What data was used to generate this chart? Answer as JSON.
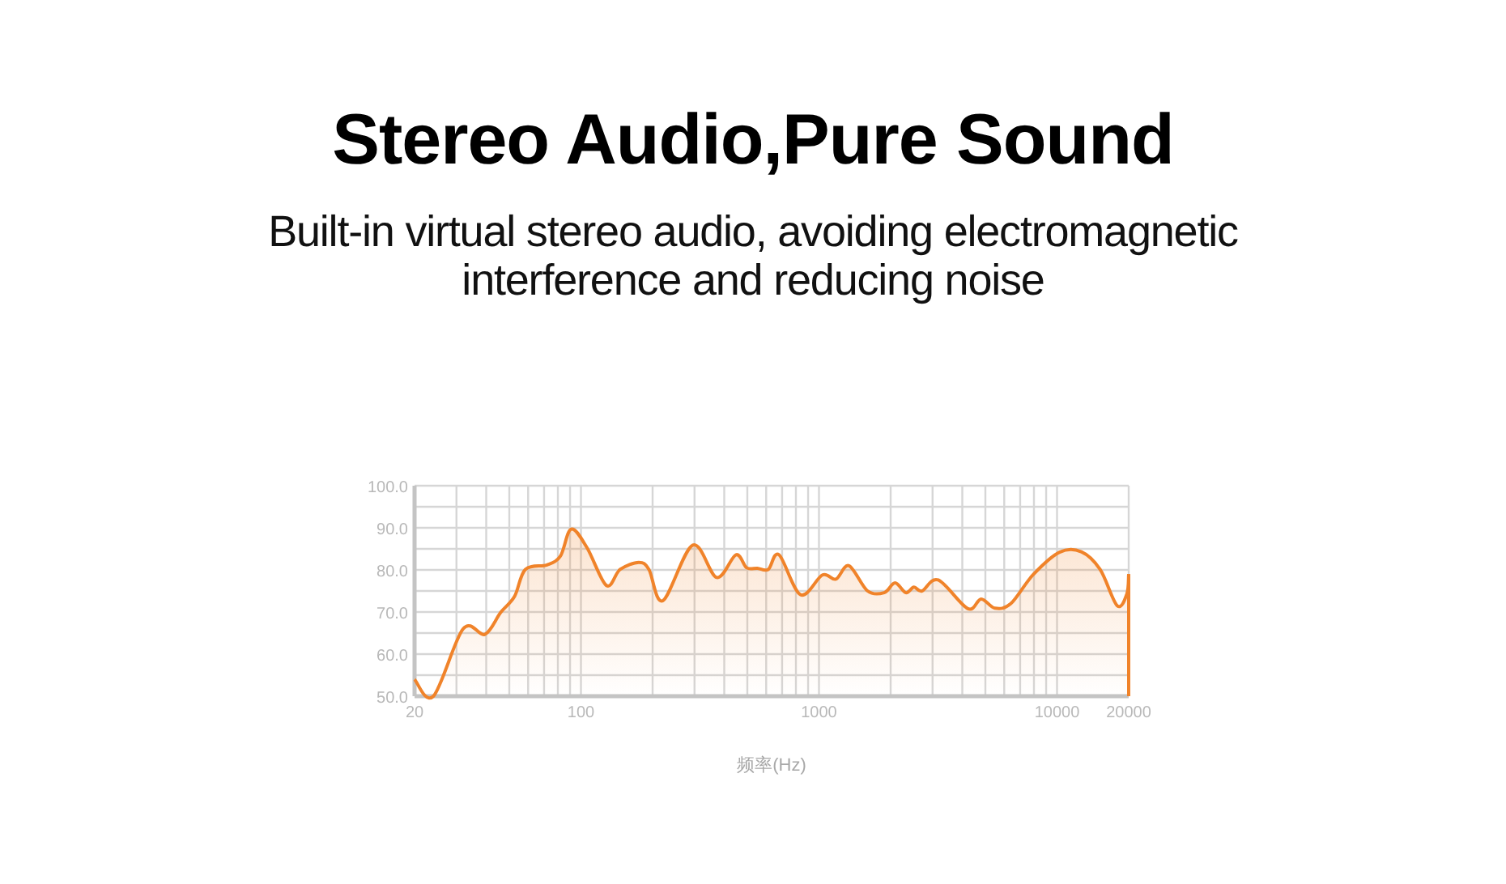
{
  "chart_data": {
    "type": "area",
    "title": "Stereo Audio,Pure Sound",
    "subtitle": "Built-in virtual stereo audio, avoiding electromagnetic interference and reducing noise",
    "xlabel": "频率(Hz)",
    "color": "#f0832a",
    "log": "x",
    "grid": true,
    "xlim": [
      20,
      20000
    ],
    "ylim": [
      50,
      100
    ],
    "xticks": [
      20,
      100,
      1000,
      10000,
      20000
    ],
    "yticks": [
      {
        "value": 50,
        "label": "50.0"
      },
      {
        "value": 55,
        "label": null
      },
      {
        "value": 60,
        "label": "60.0"
      },
      {
        "value": 65,
        "label": null
      },
      {
        "value": 70,
        "label": "70.0"
      },
      {
        "value": 75,
        "label": null
      },
      {
        "value": 80,
        "label": "80.0"
      },
      {
        "value": 85,
        "label": null
      },
      {
        "value": 90,
        "label": "90.0"
      },
      {
        "value": 95,
        "label": null
      },
      {
        "value": 100,
        "label": "100.0"
      }
    ],
    "x": [
      20,
      24,
      32,
      39.5,
      46,
      52.6,
      58.4,
      72,
      82,
      91,
      106,
      128,
      146,
      175,
      193,
      221,
      295,
      372,
      448,
      497,
      551,
      612,
      679,
      837,
      1034,
      1177,
      1336,
      1600,
      1879,
      2087,
      2316,
      2505,
      2710,
      3170,
      4220,
      4800,
      5480,
      6400,
      7920,
      10250,
      12650,
      15170,
      17900,
      19650,
      20000
    ],
    "values": [
      54,
      50,
      66,
      64.7,
      69.9,
      73.7,
      80.1,
      81.2,
      83.3,
      89.7,
      85.3,
      76.3,
      80.1,
      81.8,
      80.1,
      72.7,
      85.9,
      78.2,
      83.6,
      80.5,
      80.4,
      80.1,
      83.6,
      74.1,
      78.8,
      77.8,
      81,
      75,
      74.6,
      76.9,
      74.6,
      75.9,
      75,
      77.6,
      70.8,
      73.1,
      70.9,
      72,
      78.8,
      84.2,
      84.3,
      80.1,
      71.5,
      74.3,
      79
    ]
  }
}
